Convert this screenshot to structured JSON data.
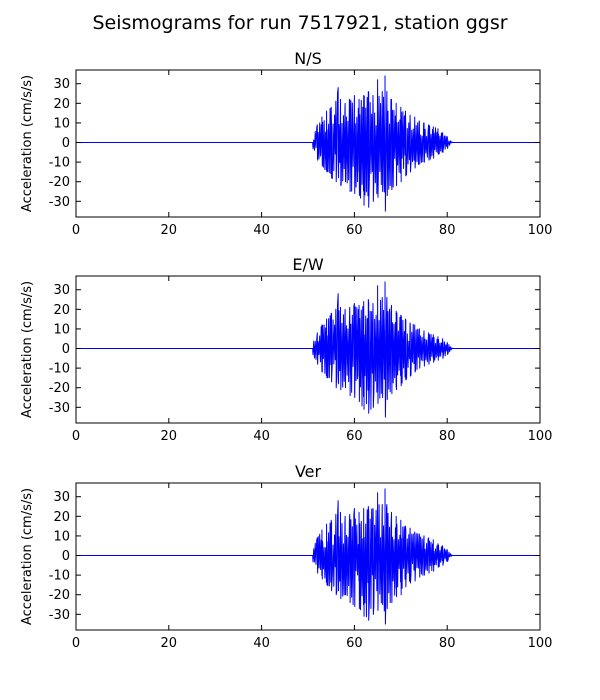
{
  "figure": {
    "title": "Seismograms for run 7517921, station ggsr",
    "line_color": "#0000ff",
    "background": "#ffffff"
  },
  "chart_data": [
    {
      "type": "line",
      "title": "N/S",
      "xlabel": "",
      "ylabel": "Acceleration (cm/s/s)",
      "xlim": [
        0,
        100
      ],
      "ylim": [
        -38,
        37
      ],
      "xticks": [
        0,
        20,
        40,
        60,
        80,
        100
      ],
      "yticks": [
        -30,
        -20,
        -10,
        0,
        10,
        20,
        30
      ],
      "grid": false,
      "series": [
        {
          "color": "#0000ff",
          "x": [
            0,
            51,
            52,
            53,
            54,
            55,
            56,
            56.5,
            57,
            58,
            59,
            60,
            61,
            62,
            63,
            64,
            65,
            66,
            66.6,
            67,
            68,
            69,
            70,
            71,
            72,
            73,
            74,
            75,
            76,
            77,
            78,
            79,
            80,
            81,
            100
          ],
          "envelope_upper": [
            0,
            3,
            9,
            13,
            16,
            18,
            21,
            28,
            22,
            20,
            22,
            24,
            22,
            24,
            26,
            24,
            32,
            26,
            34,
            26,
            22,
            20,
            18,
            16,
            14,
            13,
            11,
            10,
            9,
            8,
            7,
            5,
            3,
            0.5,
            0
          ],
          "envelope_lower": [
            0,
            -3,
            -9,
            -12,
            -15,
            -18,
            -20,
            -18,
            -22,
            -20,
            -25,
            -26,
            -27,
            -32,
            -33,
            -30,
            -28,
            -25,
            -35,
            -27,
            -24,
            -22,
            -20,
            -17,
            -15,
            -13,
            -11,
            -10,
            -9,
            -8,
            -6,
            -5,
            -3,
            -0.5,
            0
          ]
        }
      ]
    },
    {
      "type": "line",
      "title": "E/W",
      "xlabel": "",
      "ylabel": "Acceleration (cm/s/s)",
      "xlim": [
        0,
        100
      ],
      "ylim": [
        -38,
        37
      ],
      "xticks": [
        0,
        20,
        40,
        60,
        80,
        100
      ],
      "yticks": [
        -30,
        -20,
        -10,
        0,
        10,
        20,
        30
      ],
      "grid": false,
      "series": [
        {
          "color": "#0000ff",
          "x": [
            0,
            51,
            52,
            53,
            54,
            55,
            56,
            56.5,
            57,
            58,
            59,
            60,
            61,
            62,
            63,
            64,
            65,
            66,
            66.6,
            67,
            68,
            69,
            70,
            71,
            72,
            73,
            74,
            75,
            76,
            77,
            78,
            79,
            80,
            81,
            100
          ],
          "envelope_upper": [
            0,
            3,
            8,
            12,
            15,
            18,
            20,
            28,
            21,
            20,
            21,
            23,
            22,
            24,
            25,
            23,
            32,
            26,
            34,
            26,
            22,
            19,
            17,
            15,
            13,
            12,
            10,
            9,
            8,
            7,
            6,
            5,
            3,
            0.5,
            0
          ],
          "envelope_lower": [
            0,
            -3,
            -8,
            -12,
            -15,
            -17,
            -20,
            -18,
            -21,
            -20,
            -24,
            -25,
            -27,
            -31,
            -33,
            -30,
            -28,
            -25,
            -35,
            -26,
            -23,
            -21,
            -19,
            -16,
            -14,
            -12,
            -10,
            -9,
            -8,
            -7,
            -6,
            -5,
            -3,
            -0.5,
            0
          ]
        }
      ]
    },
    {
      "type": "line",
      "title": "Ver",
      "xlabel": "",
      "ylabel": "Acceleration (cm/s/s)",
      "xlim": [
        0,
        100
      ],
      "ylim": [
        -38,
        37
      ],
      "xticks": [
        0,
        20,
        40,
        60,
        80,
        100
      ],
      "yticks": [
        -30,
        -20,
        -10,
        0,
        10,
        20,
        30
      ],
      "grid": false,
      "series": [
        {
          "color": "#0000ff",
          "x": [
            0,
            51,
            52,
            53,
            54,
            55,
            56,
            56.5,
            57,
            58,
            59,
            60,
            61,
            62,
            63,
            64,
            65,
            66,
            66.6,
            67,
            68,
            69,
            70,
            71,
            72,
            73,
            74,
            75,
            76,
            77,
            78,
            79,
            80,
            81,
            100
          ],
          "envelope_upper": [
            0,
            3,
            9,
            13,
            16,
            18,
            21,
            28,
            22,
            20,
            21,
            24,
            22,
            24,
            25,
            24,
            32,
            26,
            34,
            26,
            22,
            20,
            18,
            15,
            14,
            12,
            11,
            10,
            9,
            8,
            6,
            5,
            3,
            0.5,
            0
          ],
          "envelope_lower": [
            0,
            -3,
            -9,
            -12,
            -15,
            -18,
            -20,
            -18,
            -22,
            -20,
            -24,
            -26,
            -27,
            -31,
            -33,
            -30,
            -28,
            -25,
            -35,
            -27,
            -24,
            -21,
            -20,
            -16,
            -14,
            -13,
            -11,
            -10,
            -9,
            -8,
            -6,
            -5,
            -3,
            -0.5,
            0
          ]
        }
      ]
    }
  ]
}
